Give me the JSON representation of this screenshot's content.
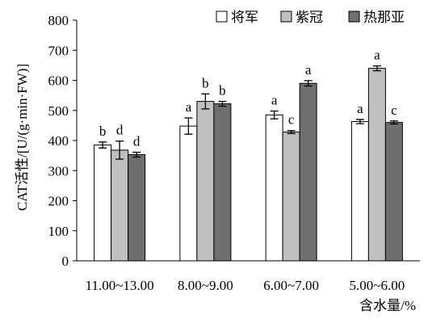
{
  "chart_data": {
    "type": "bar",
    "title": "",
    "ylabel": "CAT活性/[U/(g·min·FW)]",
    "xlabel": "含水量/%",
    "ylim": [
      0,
      800
    ],
    "yticks": [
      0,
      100,
      200,
      300,
      400,
      500,
      600,
      700,
      800
    ],
    "grid": false,
    "legend_position": "top-right",
    "categories": [
      "11.00~13.00",
      "8.00~9.00",
      "6.00~7.00",
      "5.00~6.00"
    ],
    "series": [
      {
        "name": "将军",
        "color": "#ffffff",
        "values": [
          385,
          448,
          485,
          463
        ],
        "errors": [
          10,
          27,
          13,
          7
        ],
        "labels": [
          "b",
          "a",
          "a",
          "a"
        ]
      },
      {
        "name": "紫冠",
        "color": "#c0c0c0",
        "values": [
          368,
          530,
          428,
          640
        ],
        "errors": [
          30,
          25,
          5,
          8
        ],
        "labels": [
          "d",
          "b",
          "c",
          "a"
        ]
      },
      {
        "name": "热那亚",
        "color": "#6f6f6f",
        "values": [
          353,
          522,
          590,
          460
        ],
        "errors": [
          8,
          8,
          9,
          5
        ],
        "labels": [
          "d",
          "b",
          "a",
          "c"
        ]
      }
    ]
  }
}
